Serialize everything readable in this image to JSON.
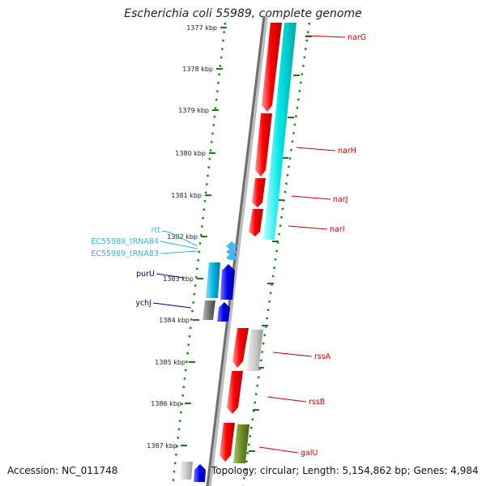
{
  "title": "Escherichia coli 55989, complete genome",
  "accession": "Accession: NC_011748",
  "topology": "Topology: circular; Length: 5,154,862 bp; Genes: 4,984",
  "ruler": [
    "1377 kbp",
    "1378 kbp",
    "1379 kbp",
    "1380 kbp",
    "1381 kbp",
    "1382 kbp",
    "1383 kbp",
    "1384 kbp",
    "1385 kbp",
    "1386 kbp",
    "1387 kbp"
  ],
  "gene_labels": [
    "narG",
    "narH",
    "narJ",
    "narI",
    "rtt",
    "EC55989_tRNA84",
    "EC55989_tRNA83",
    "purU",
    "ychJ",
    "rssA",
    "rssB",
    "galU"
  ],
  "colors": {
    "red": "#ff0000",
    "cyan": "#00e6e6",
    "lightblue": "#00b4e6",
    "blue": "#0000ee",
    "darkblue": "#00008b",
    "gray": "#777777",
    "lightgray": "#cccccc",
    "olive": "#6b8e23",
    "track": "#1a8a1a"
  }
}
